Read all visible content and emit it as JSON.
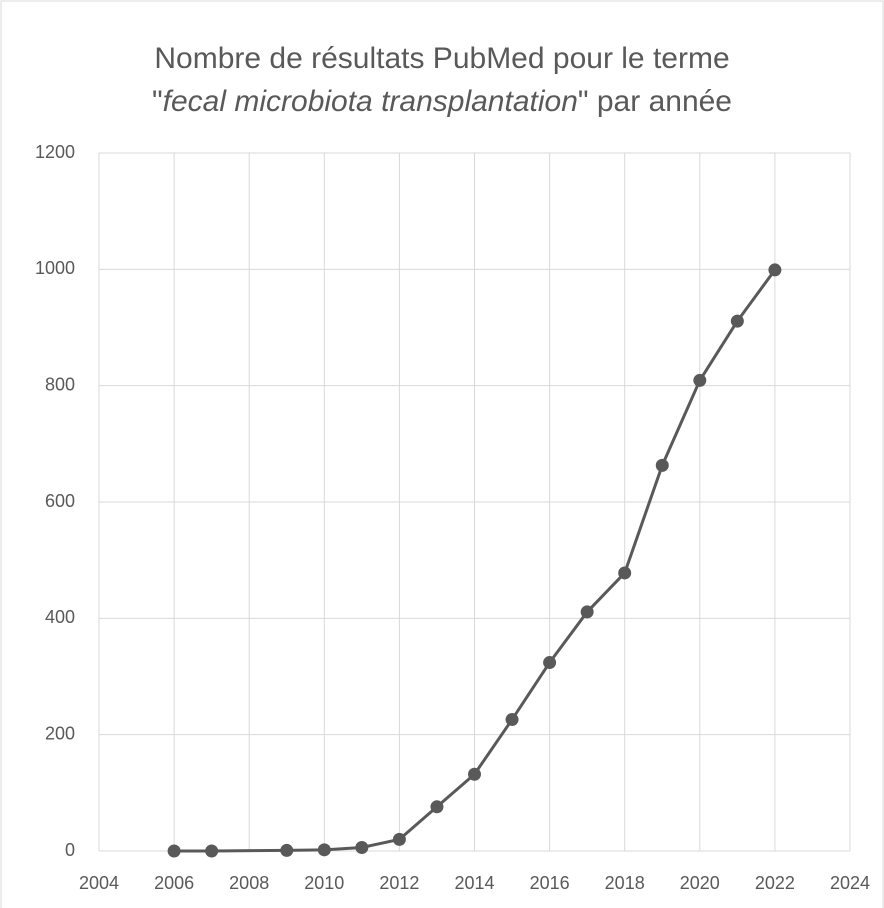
{
  "chart_data": {
    "type": "line",
    "title": {
      "line1": "Nombre de résultats PubMed pour le terme",
      "line2_before": "\"",
      "line2_italic": "fecal microbiota transplantation",
      "line2_after": "\" par année"
    },
    "series": [
      {
        "color": "#595959",
        "x": [
          2006,
          2007,
          2009,
          2010,
          2011,
          2012,
          2013,
          2014,
          2015,
          2016,
          2017,
          2018,
          2019,
          2020,
          2021,
          2022
        ],
        "values": [
          0,
          0,
          1,
          2,
          6,
          20,
          76,
          132,
          226,
          324,
          411,
          478,
          663,
          809,
          911,
          999
        ]
      }
    ],
    "xlim": [
      2004,
      2024
    ],
    "xticks": [
      2004,
      2006,
      2008,
      2010,
      2012,
      2014,
      2016,
      2018,
      2020,
      2022,
      2024
    ],
    "ylim": [
      0,
      1200
    ],
    "yticks": [
      0,
      200,
      400,
      600,
      800,
      1000,
      1200
    ],
    "grid": true,
    "markers": true
  }
}
